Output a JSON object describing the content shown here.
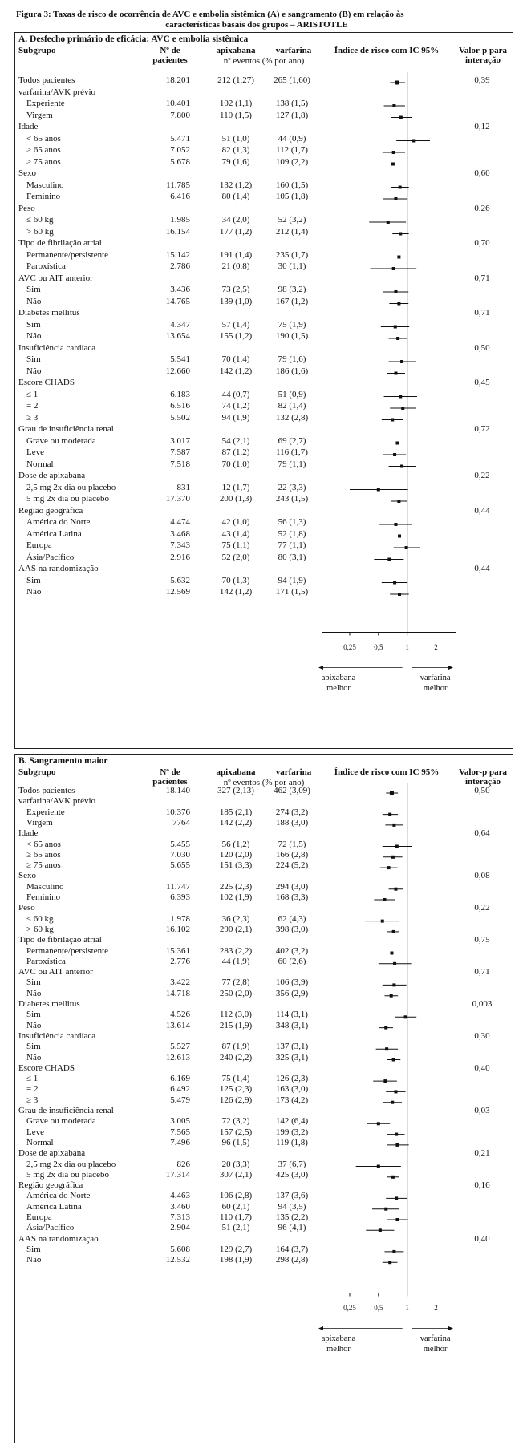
{
  "caption": {
    "line1": "Figura 3: Taxas de risco de ocorrência de AVC e embolia sistêmica (A) e sangramento (B) em relação às",
    "line2": "características basais dos grupos – ARISTOTLE"
  },
  "panelA": {
    "title": "A. Desfecho primário de eficácia: AVC e embolia sistêmica",
    "headers": {
      "subgroup": "Subgrupo",
      "n": "Nº de pacientes",
      "apix": "apixabana",
      "warf": "varfarina",
      "events": "nº eventos (% por ano)",
      "hr": "Índice de risco com IC 95%",
      "p": "Valor-p para interação"
    },
    "axis_ticks": [
      "0,25",
      "0,5",
      "1",
      "2"
    ],
    "left_note": "apixabana melhor",
    "right_note": "varfarina melhor",
    "rows": [
      {
        "label": "Todos pacientes",
        "indent": false,
        "n": "18.201",
        "apix": "212 (1,27)",
        "warf": "265 (1,60)",
        "p": "0,39",
        "hr": 0.79,
        "lo": 0.66,
        "hi": 0.95
      },
      {
        "label": "varfarina/AVK prévio",
        "indent": false,
        "n": "",
        "apix": "",
        "warf": "",
        "p": ""
      },
      {
        "label": "Experiente",
        "indent": true,
        "n": "10.401",
        "apix": "102 (1,1)",
        "warf": "138 (1,5)",
        "p": "",
        "hr": 0.73,
        "lo": 0.57,
        "hi": 0.95
      },
      {
        "label": "Virgem",
        "indent": true,
        "n": "7.800",
        "apix": "110 (1,5)",
        "warf": "127 (1,8)",
        "p": "",
        "hr": 0.86,
        "lo": 0.67,
        "hi": 1.11
      },
      {
        "label": "Idade",
        "indent": false,
        "n": "",
        "apix": "",
        "warf": "",
        "p": "0,12"
      },
      {
        "label": "< 65 anos",
        "indent": true,
        "n": "5.471",
        "apix": "51 (1,0)",
        "warf": "44 (0,9)",
        "p": "",
        "hr": 1.16,
        "lo": 0.77,
        "hi": 1.73
      },
      {
        "label": "≥ 65 anos",
        "indent": true,
        "n": "7.052",
        "apix": "82 (1,3)",
        "warf": "112 (1,7)",
        "p": "",
        "hr": 0.72,
        "lo": 0.55,
        "hi": 0.95
      },
      {
        "label": "≥ 75 anos",
        "indent": true,
        "n": "5.678",
        "apix": "79 (1,6)",
        "warf": "109 (2,2)",
        "p": "",
        "hr": 0.71,
        "lo": 0.53,
        "hi": 0.95
      },
      {
        "label": "Sexo",
        "indent": false,
        "n": "",
        "apix": "",
        "warf": "",
        "p": "0,60"
      },
      {
        "label": "Masculino",
        "indent": true,
        "n": "11.785",
        "apix": "132 (1,2)",
        "warf": "160 (1,5)",
        "p": "",
        "hr": 0.84,
        "lo": 0.67,
        "hi": 1.04
      },
      {
        "label": "Feminino",
        "indent": true,
        "n": "6.416",
        "apix": "80 (1,4)",
        "warf": "105 (1,8)",
        "p": "",
        "hr": 0.76,
        "lo": 0.56,
        "hi": 1.01
      },
      {
        "label": "Peso",
        "indent": false,
        "n": "",
        "apix": "",
        "warf": "",
        "p": "0,26"
      },
      {
        "label": "≤ 60 kg",
        "indent": true,
        "n": "1.985",
        "apix": "34 (2,0)",
        "warf": "52 (3,2)",
        "p": "",
        "hr": 0.63,
        "lo": 0.4,
        "hi": 0.97
      },
      {
        "label": "> 60 kg",
        "indent": true,
        "n": "16.154",
        "apix": "177 (1,2)",
        "warf": "212 (1,4)",
        "p": "",
        "hr": 0.85,
        "lo": 0.7,
        "hi": 1.04
      },
      {
        "label": "Tipo de fibrilação atrial",
        "indent": false,
        "n": "",
        "apix": "",
        "warf": "",
        "p": "0,70"
      },
      {
        "label": "Permanente/persistente",
        "indent": true,
        "n": "15.142",
        "apix": "191 (1,4)",
        "warf": "235 (1,7)",
        "p": "",
        "hr": 0.82,
        "lo": 0.68,
        "hi": 0.99
      },
      {
        "label": "Paroxística",
        "indent": true,
        "n": "2.786",
        "apix": "21 (0,8)",
        "warf": "30 (1,1)",
        "p": "",
        "hr": 0.72,
        "lo": 0.41,
        "hi": 1.25
      },
      {
        "label": "AVC ou AIT anterior",
        "indent": false,
        "n": "",
        "apix": "",
        "warf": "",
        "p": "0,71"
      },
      {
        "label": "Sim",
        "indent": true,
        "n": "3.436",
        "apix": "73 (2,5)",
        "warf": "98 (3,2)",
        "p": "",
        "hr": 0.76,
        "lo": 0.56,
        "hi": 1.03
      },
      {
        "label": "Não",
        "indent": true,
        "n": "14.765",
        "apix": "139 (1,0)",
        "warf": "167 (1,2)",
        "p": "",
        "hr": 0.82,
        "lo": 0.65,
        "hi": 1.03
      },
      {
        "label": "Diabetes mellitus",
        "indent": false,
        "n": "",
        "apix": "",
        "warf": "",
        "p": "0,71"
      },
      {
        "label": "Sim",
        "indent": true,
        "n": "4.347",
        "apix": "57 (1,4)",
        "warf": "75 (1,9)",
        "p": "",
        "hr": 0.75,
        "lo": 0.53,
        "hi": 1.05
      },
      {
        "label": "Não",
        "indent": true,
        "n": "13.654",
        "apix": "155 (1,2)",
        "warf": "190 (1,5)",
        "p": "",
        "hr": 0.8,
        "lo": 0.64,
        "hi": 0.99
      },
      {
        "label": "Insuficiência cardíaca",
        "indent": false,
        "n": "",
        "apix": "",
        "warf": "",
        "p": "0,50"
      },
      {
        "label": "Sim",
        "indent": true,
        "n": "5.541",
        "apix": "70 (1,4)",
        "warf": "79 (1,6)",
        "p": "",
        "hr": 0.88,
        "lo": 0.64,
        "hi": 1.22
      },
      {
        "label": "Não",
        "indent": true,
        "n": "12.660",
        "apix": "142 (1,2)",
        "warf": "186 (1,6)",
        "p": "",
        "hr": 0.76,
        "lo": 0.61,
        "hi": 0.95
      },
      {
        "label": "Escore CHADS",
        "indent": false,
        "n": "",
        "apix": "",
        "warf": "",
        "p": "0,45"
      },
      {
        "label": "≤ 1",
        "indent": true,
        "n": "6.183",
        "apix": "44 (0,7)",
        "warf": "51 (0,9)",
        "p": "",
        "hr": 0.85,
        "lo": 0.57,
        "hi": 1.27
      },
      {
        "label": "= 2",
        "indent": true,
        "n": "6.516",
        "apix": "74 (1,2)",
        "warf": "82 (1,4)",
        "p": "",
        "hr": 0.9,
        "lo": 0.66,
        "hi": 1.23
      },
      {
        "label": "≥ 3",
        "indent": true,
        "n": "5.502",
        "apix": "94 (1,9)",
        "warf": "132 (2,8)",
        "p": "",
        "hr": 0.7,
        "lo": 0.54,
        "hi": 0.91
      },
      {
        "label": "Grau de insuficiência renal",
        "indent": false,
        "n": "",
        "apix": "",
        "warf": "",
        "p": "0,72"
      },
      {
        "label": "Grave ou moderada",
        "indent": true,
        "n": "3.017",
        "apix": "54 (2,1)",
        "warf": "69 (2,7)",
        "p": "",
        "hr": 0.79,
        "lo": 0.55,
        "hi": 1.14
      },
      {
        "label": "Leve",
        "indent": true,
        "n": "7.587",
        "apix": "87 (1,2)",
        "warf": "116 (1,7)",
        "p": "",
        "hr": 0.74,
        "lo": 0.56,
        "hi": 0.97
      },
      {
        "label": "Normal",
        "indent": true,
        "n": "7.518",
        "apix": "70 (1,0)",
        "warf": "79 (1,1)",
        "p": "",
        "hr": 0.88,
        "lo": 0.64,
        "hi": 1.22
      },
      {
        "label": "Dose de apixabana",
        "indent": false,
        "n": "",
        "apix": "",
        "warf": "",
        "p": "0,22"
      },
      {
        "label": "2,5 mg 2x dia ou placebo",
        "indent": true,
        "n": "831",
        "apix": "12 (1,7)",
        "warf": "22 (3,3)",
        "p": "",
        "hr": 0.5,
        "lo": 0.25,
        "hi": 1.02
      },
      {
        "label": "5 mg 2x dia ou placebo",
        "indent": true,
        "n": "17.370",
        "apix": "200 (1,3)",
        "warf": "243 (1,5)",
        "p": "",
        "hr": 0.82,
        "lo": 0.68,
        "hi": 0.99
      },
      {
        "label": "Região geográfica",
        "indent": false,
        "n": "",
        "apix": "",
        "warf": "",
        "p": "0,44"
      },
      {
        "label": "América do Norte",
        "indent": true,
        "n": "4.474",
        "apix": "42 (1,0)",
        "warf": "56 (1,3)",
        "p": "",
        "hr": 0.76,
        "lo": 0.51,
        "hi": 1.13
      },
      {
        "label": "América Latina",
        "indent": true,
        "n": "3.468",
        "apix": "43 (1,4)",
        "warf": "52 (1,8)",
        "p": "",
        "hr": 0.83,
        "lo": 0.55,
        "hi": 1.24
      },
      {
        "label": "Europa",
        "indent": true,
        "n": "7.343",
        "apix": "75 (1,1)",
        "warf": "77 (1,1)",
        "p": "",
        "hr": 0.98,
        "lo": 0.72,
        "hi": 1.35
      },
      {
        "label": "Ásia/Pacífico",
        "indent": true,
        "n": "2.916",
        "apix": "52 (2,0)",
        "warf": "80 (3,1)",
        "p": "",
        "hr": 0.65,
        "lo": 0.45,
        "hi": 0.92
      },
      {
        "label": "AAS na randomização",
        "indent": false,
        "n": "",
        "apix": "",
        "warf": "",
        "p": "0,44"
      },
      {
        "label": "Sim",
        "indent": true,
        "n": "5.632",
        "apix": "70 (1,3)",
        "warf": "94 (1,9)",
        "p": "",
        "hr": 0.74,
        "lo": 0.54,
        "hi": 1.01
      },
      {
        "label": "Não",
        "indent": true,
        "n": "12.569",
        "apix": "142 (1,2)",
        "warf": "171 (1,5)",
        "p": "",
        "hr": 0.83,
        "lo": 0.66,
        "hi": 1.04
      }
    ]
  },
  "panelB": {
    "title": "B. Sangramento maior",
    "headers": {
      "subgroup": "Subgrupo",
      "n": "Nº de pacientes",
      "apix": "apixabana",
      "warf": "varfarina",
      "events": "nº eventos (% por ano)",
      "hr": "Índice de risco com IC 95%",
      "p": "Valor-p para interação"
    },
    "axis_ticks": [
      "0,25",
      "0,5",
      "1",
      "2"
    ],
    "left_note": "apixabana melhor",
    "right_note": "varfarina melhor",
    "rows": [
      {
        "label": "Todos pacientes",
        "indent": false,
        "n": "18.140",
        "apix": "327 (2,13)",
        "warf": "462 (3,09)",
        "p": "0,50",
        "hr": 0.69,
        "lo": 0.6,
        "hi": 0.8
      },
      {
        "label": "varfarina/AVK prévio",
        "indent": false,
        "n": "",
        "apix": "",
        "warf": "",
        "p": ""
      },
      {
        "label": "Experiente",
        "indent": true,
        "n": "10.376",
        "apix": "185 (2,1)",
        "warf": "274 (3,2)",
        "p": "",
        "hr": 0.66,
        "lo": 0.55,
        "hi": 0.8
      },
      {
        "label": "Virgem",
        "indent": true,
        "n": "7764",
        "apix": "142 (2,2)",
        "warf": "188 (3,0)",
        "p": "",
        "hr": 0.73,
        "lo": 0.59,
        "hi": 0.91
      },
      {
        "label": "Idade",
        "indent": false,
        "n": "",
        "apix": "",
        "warf": "",
        "p": "0,64"
      },
      {
        "label": "< 65 anos",
        "indent": true,
        "n": "5.455",
        "apix": "56 (1,2)",
        "warf": "72 (1,5)",
        "p": "",
        "hr": 0.78,
        "lo": 0.55,
        "hi": 1.11
      },
      {
        "label": "≥ 65 anos",
        "indent": true,
        "n": "7.030",
        "apix": "120 (2,0)",
        "warf": "166 (2,8)",
        "p": "",
        "hr": 0.71,
        "lo": 0.56,
        "hi": 0.89
      },
      {
        "label": "≥ 75 anos",
        "indent": true,
        "n": "5.655",
        "apix": "151 (3,3)",
        "warf": "224 (5,2)",
        "p": "",
        "hr": 0.64,
        "lo": 0.52,
        "hi": 0.79
      },
      {
        "label": "Sexo",
        "indent": false,
        "n": "",
        "apix": "",
        "warf": "",
        "p": "0,08"
      },
      {
        "label": "Masculino",
        "indent": true,
        "n": "11.747",
        "apix": "225 (2,3)",
        "warf": "294 (3,0)",
        "p": "",
        "hr": 0.76,
        "lo": 0.64,
        "hi": 0.9
      },
      {
        "label": "Feminino",
        "indent": true,
        "n": "6.393",
        "apix": "102 (1,9)",
        "warf": "168 (3,3)",
        "p": "",
        "hr": 0.58,
        "lo": 0.45,
        "hi": 0.74
      },
      {
        "label": "Peso",
        "indent": false,
        "n": "",
        "apix": "",
        "warf": "",
        "p": "0,22"
      },
      {
        "label": "≤ 60 kg",
        "indent": true,
        "n": "1.978",
        "apix": "36 (2,3)",
        "warf": "62 (4,3)",
        "p": "",
        "hr": 0.55,
        "lo": 0.36,
        "hi": 0.83
      },
      {
        "label": "> 60 kg",
        "indent": true,
        "n": "16.102",
        "apix": "290 (2,1)",
        "warf": "398 (3,0)",
        "p": "",
        "hr": 0.72,
        "lo": 0.62,
        "hi": 0.83
      },
      {
        "label": "Tipo de fibrilação atrial",
        "indent": false,
        "n": "",
        "apix": "",
        "warf": "",
        "p": "0,75"
      },
      {
        "label": "Permanente/persistente",
        "indent": true,
        "n": "15.361",
        "apix": "283 (2,2)",
        "warf": "402 (3,2)",
        "p": "",
        "hr": 0.69,
        "lo": 0.59,
        "hi": 0.8
      },
      {
        "label": "Paroxística",
        "indent": true,
        "n": "2.776",
        "apix": "44 (1,9)",
        "warf": "60 (2,6)",
        "p": "",
        "hr": 0.74,
        "lo": 0.5,
        "hi": 1.1
      },
      {
        "label": "AVC ou AIT anterior",
        "indent": false,
        "n": "",
        "apix": "",
        "warf": "",
        "p": "0,71"
      },
      {
        "label": "Sim",
        "indent": true,
        "n": "3.422",
        "apix": "77 (2,8)",
        "warf": "106 (3,9)",
        "p": "",
        "hr": 0.73,
        "lo": 0.55,
        "hi": 0.98
      },
      {
        "label": "Não",
        "indent": true,
        "n": "14.718",
        "apix": "250 (2,0)",
        "warf": "356 (2,9)",
        "p": "",
        "hr": 0.68,
        "lo": 0.58,
        "hi": 0.8
      },
      {
        "label": "Diabetes mellitus",
        "indent": false,
        "n": "",
        "apix": "",
        "warf": "",
        "p": "0,003"
      },
      {
        "label": "Sim",
        "indent": true,
        "n": "4.526",
        "apix": "112 (3,0)",
        "warf": "114 (3,1)",
        "p": "",
        "hr": 0.96,
        "lo": 0.75,
        "hi": 1.25
      },
      {
        "label": "Não",
        "indent": true,
        "n": "13.614",
        "apix": "215 (1,9)",
        "warf": "348 (3,1)",
        "p": "",
        "hr": 0.6,
        "lo": 0.51,
        "hi": 0.71
      },
      {
        "label": "Insuficiência cardíaca",
        "indent": false,
        "n": "",
        "apix": "",
        "warf": "",
        "p": "0,30"
      },
      {
        "label": "Sim",
        "indent": true,
        "n": "5.527",
        "apix": "87 (1,9)",
        "warf": "137 (3,1)",
        "p": "",
        "hr": 0.61,
        "lo": 0.47,
        "hi": 0.8
      },
      {
        "label": "Não",
        "indent": true,
        "n": "12.613",
        "apix": "240 (2,2)",
        "warf": "325 (3,1)",
        "p": "",
        "hr": 0.72,
        "lo": 0.61,
        "hi": 0.85
      },
      {
        "label": "Escore CHADS",
        "indent": false,
        "n": "",
        "apix": "",
        "warf": "",
        "p": "0,40"
      },
      {
        "label": "≤ 1",
        "indent": true,
        "n": "6.169",
        "apix": "75 (1,4)",
        "warf": "126 (2,3)",
        "p": "",
        "hr": 0.59,
        "lo": 0.44,
        "hi": 0.78
      },
      {
        "label": "= 2",
        "indent": true,
        "n": "6.492",
        "apix": "125 (2,3)",
        "warf": "163 (3,0)",
        "p": "",
        "hr": 0.76,
        "lo": 0.6,
        "hi": 0.96
      },
      {
        "label": "≥ 3",
        "indent": true,
        "n": "5.479",
        "apix": "126 (2,9)",
        "warf": "173 (4,2)",
        "p": "",
        "hr": 0.7,
        "lo": 0.56,
        "hi": 0.88
      },
      {
        "label": "Grau de insuficiência renal",
        "indent": false,
        "n": "",
        "apix": "",
        "warf": "",
        "p": "0,03"
      },
      {
        "label": "Grave ou moderada",
        "indent": true,
        "n": "3.005",
        "apix": "72 (3,2)",
        "warf": "142 (6,4)",
        "p": "",
        "hr": 0.5,
        "lo": 0.38,
        "hi": 0.66
      },
      {
        "label": "Leve",
        "indent": true,
        "n": "7.565",
        "apix": "157 (2,5)",
        "warf": "199 (3,2)",
        "p": "",
        "hr": 0.77,
        "lo": 0.62,
        "hi": 0.94
      },
      {
        "label": "Normal",
        "indent": true,
        "n": "7.496",
        "apix": "96 (1,5)",
        "warf": "119 (1,8)",
        "p": "",
        "hr": 0.79,
        "lo": 0.61,
        "hi": 1.04
      },
      {
        "label": "Dose de apixabana",
        "indent": false,
        "n": "",
        "apix": "",
        "warf": "",
        "p": "0,21"
      },
      {
        "label": "2,5 mg 2x dia ou placebo",
        "indent": true,
        "n": "826",
        "apix": "20 (3,3)",
        "warf": "37 (6,7)",
        "p": "",
        "hr": 0.5,
        "lo": 0.29,
        "hi": 0.86
      },
      {
        "label": "5 mg 2x dia ou placebo",
        "indent": true,
        "n": "17.314",
        "apix": "307 (2,1)",
        "warf": "425 (3,0)",
        "p": "",
        "hr": 0.71,
        "lo": 0.61,
        "hi": 0.82
      },
      {
        "label": "Região geográfica",
        "indent": false,
        "n": "",
        "apix": "",
        "warf": "",
        "p": "0,16"
      },
      {
        "label": "América do Norte",
        "indent": true,
        "n": "4.463",
        "apix": "106 (2,8)",
        "warf": "137 (3,6)",
        "p": "",
        "hr": 0.77,
        "lo": 0.6,
        "hi": 0.99
      },
      {
        "label": "América Latina",
        "indent": true,
        "n": "3.460",
        "apix": "60 (2,1)",
        "warf": "94 (3,5)",
        "p": "",
        "hr": 0.6,
        "lo": 0.43,
        "hi": 0.83
      },
      {
        "label": "Europa",
        "indent": true,
        "n": "7.313",
        "apix": "110 (1,7)",
        "warf": "135 (2,2)",
        "p": "",
        "hr": 0.79,
        "lo": 0.62,
        "hi": 1.02
      },
      {
        "label": "Ásia/Pacífico",
        "indent": true,
        "n": "2.904",
        "apix": "51 (2,1)",
        "warf": "96 (4,1)",
        "p": "",
        "hr": 0.52,
        "lo": 0.37,
        "hi": 0.73
      },
      {
        "label": "AAS na randomização",
        "indent": false,
        "n": "",
        "apix": "",
        "warf": "",
        "p": "0,40"
      },
      {
        "label": "Sim",
        "indent": true,
        "n": "5.608",
        "apix": "129 (2,7)",
        "warf": "164 (3,7)",
        "p": "",
        "hr": 0.73,
        "lo": 0.58,
        "hi": 0.92
      },
      {
        "label": "Não",
        "indent": true,
        "n": "12.532",
        "apix": "198 (1,9)",
        "warf": "298 (2,8)",
        "p": "",
        "hr": 0.66,
        "lo": 0.55,
        "hi": 0.79
      }
    ]
  }
}
